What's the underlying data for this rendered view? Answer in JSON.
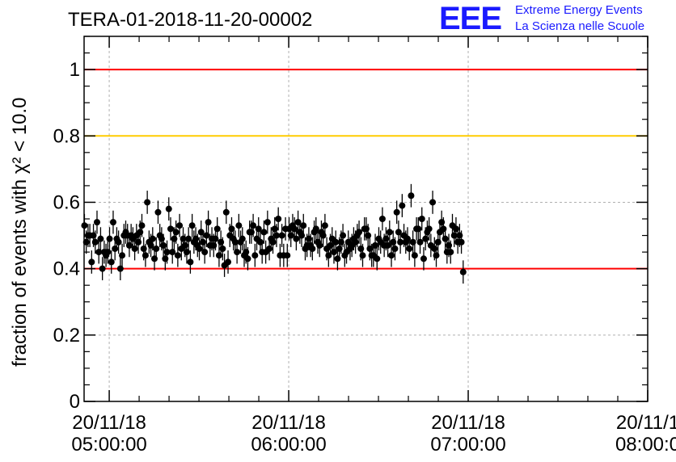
{
  "header": {
    "title": "TERA-01-2018-11-20-00002",
    "logo": {
      "letters": "EEE",
      "line1": "Extreme Energy Events",
      "line2": "La Scienza nelle Scuole",
      "color": "#1a1aff"
    }
  },
  "chart_data": {
    "type": "scatter",
    "title": "TERA-01-2018-11-20-00002",
    "ylabel": "fraction of events with χ² < 10.0",
    "xlabel": "",
    "x_range_hours": [
      4.86,
      8.0
    ],
    "ylim": [
      0,
      1.1
    ],
    "yticks": [
      0,
      0.2,
      0.4,
      0.6,
      0.8,
      1
    ],
    "ytick_labels": [
      "0",
      "0.2",
      "0.4",
      "0.6",
      "0.8",
      "1"
    ],
    "xticks_hours": [
      5,
      6,
      7,
      8
    ],
    "xtick_labels": [
      {
        "date": "20/11/18",
        "time": "05:00:00"
      },
      {
        "date": "20/11/18",
        "time": "06:00:00"
      },
      {
        "date": "20/11/18",
        "time": "07:00:00"
      },
      {
        "date": "20/11/1",
        "time": "08:00:0"
      }
    ],
    "grid": true,
    "reference_lines": [
      {
        "y": 1.0,
        "color": "#ff0000"
      },
      {
        "y": 0.8,
        "color": "#ffcc00"
      },
      {
        "y": 0.4,
        "color": "#ff0000"
      }
    ],
    "series": [
      {
        "name": "fraction",
        "x_start_hour": 4.862,
        "x_step_hour": 0.01,
        "error": 0.035,
        "values": [
          0.53,
          0.48,
          0.5,
          0.5,
          0.42,
          0.5,
          0.48,
          0.54,
          0.45,
          0.49,
          0.4,
          0.45,
          0.44,
          0.45,
          0.49,
          0.42,
          0.54,
          0.46,
          0.49,
          0.48,
          0.4,
          0.44,
          0.5,
          0.51,
          0.5,
          0.47,
          0.5,
          0.49,
          0.46,
          0.5,
          0.48,
          0.51,
          0.53,
          0.46,
          0.44,
          0.6,
          0.48,
          0.47,
          0.49,
          0.43,
          0.46,
          0.57,
          0.5,
          0.49,
          0.47,
          0.43,
          0.45,
          0.58,
          0.52,
          0.45,
          0.49,
          0.51,
          0.44,
          0.53,
          0.46,
          0.49,
          0.47,
          0.45,
          0.49,
          0.42,
          0.53,
          0.48,
          0.49,
          0.47,
          0.46,
          0.51,
          0.48,
          0.45,
          0.5,
          0.54,
          0.47,
          0.49,
          0.47,
          0.49,
          0.52,
          0.44,
          0.48,
          0.46,
          0.41,
          0.57,
          0.42,
          0.5,
          0.52,
          0.49,
          0.48,
          0.45,
          0.53,
          0.48,
          0.49,
          0.44,
          0.45,
          0.43,
          0.51,
          0.51,
          0.53,
          0.44,
          0.49,
          0.52,
          0.48,
          0.45,
          0.51,
          0.45,
          0.54,
          0.46,
          0.49,
          0.48,
          0.52,
          0.5,
          0.55,
          0.44,
          0.5,
          0.44,
          0.52,
          0.44,
          0.52,
          0.5,
          0.53,
          0.52,
          0.49,
          0.54,
          0.51,
          0.5,
          0.53,
          0.46,
          0.47,
          0.49,
          0.47,
          0.46,
          0.51,
          0.52,
          0.48,
          0.47,
          0.51,
          0.5,
          0.53,
          0.46,
          0.44,
          0.47,
          0.49,
          0.45,
          0.48,
          0.43,
          0.46,
          0.48,
          0.5,
          0.44,
          0.45,
          0.48,
          0.46,
          0.47,
          0.49,
          0.48,
          0.5,
          0.51,
          0.46,
          0.44,
          0.52,
          0.52,
          0.5,
          0.46,
          0.44,
          0.44,
          0.47,
          0.43,
          0.49,
          0.48,
          0.55,
          0.47,
          0.49,
          0.47,
          0.51,
          0.44,
          0.48,
          0.46,
          0.57,
          0.51,
          0.48,
          0.59,
          0.5,
          0.48,
          0.49,
          0.46,
          0.62,
          0.48,
          0.44,
          0.52,
          0.52,
          0.48,
          0.55,
          0.43,
          0.49,
          0.51,
          0.52,
          0.47,
          0.6,
          0.46,
          0.44,
          0.48,
          0.51,
          0.54,
          0.52,
          0.49,
          0.45,
          0.47,
          0.45,
          0.53,
          0.5,
          0.52,
          0.48,
          0.5,
          0.48,
          0.39
        ]
      }
    ]
  }
}
